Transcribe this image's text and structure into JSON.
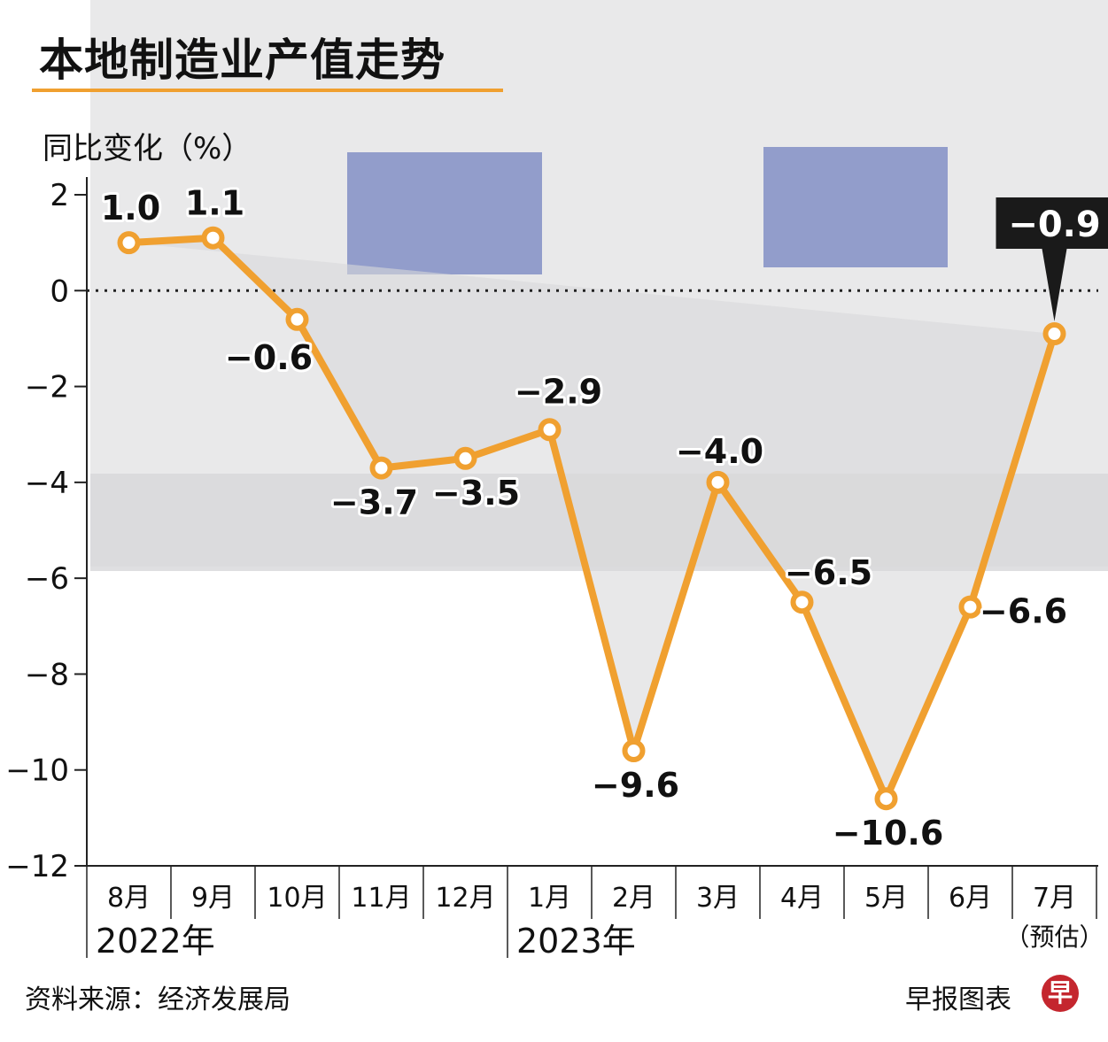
{
  "title": "本地制造业产值走势",
  "source": "资料来源：经济发展局",
  "credit": "早报图表",
  "logo_char": "早",
  "colors": {
    "line": "#f0a030",
    "accent": "#f0a030",
    "callout": "#1a1a1a",
    "logo": "#c4262e"
  },
  "chart_data": {
    "type": "line",
    "ylabel": "同比变化（%）",
    "ylim": [
      -12,
      2
    ],
    "yticks": [
      2,
      0,
      -2,
      -4,
      -6,
      -8,
      -10,
      -12
    ],
    "ytick_labels": [
      "2",
      "0",
      "−2",
      "−4",
      "−6",
      "−8",
      "−10",
      "−12"
    ],
    "categories": [
      "8月",
      "9月",
      "10月",
      "11月",
      "12月",
      "1月",
      "2月",
      "3月",
      "4月",
      "5月",
      "6月",
      "7月"
    ],
    "values": [
      1.0,
      1.1,
      -0.6,
      -3.7,
      -3.5,
      -2.9,
      -9.6,
      -4.0,
      -6.5,
      -10.6,
      -6.6,
      -0.9
    ],
    "value_labels": [
      "1.0",
      "1.1",
      "−0.6",
      "−3.7",
      "−3.5",
      "−2.9",
      "−9.6",
      "−4.0",
      "−6.5",
      "−10.6",
      "−6.6",
      "−0.9"
    ],
    "year_groups": [
      {
        "label": "2022年",
        "start": 0,
        "end": 4
      },
      {
        "label": "2023年",
        "start": 5,
        "end": 11
      }
    ],
    "last_note": "（预估）",
    "reference_line": 0,
    "grid": false
  }
}
